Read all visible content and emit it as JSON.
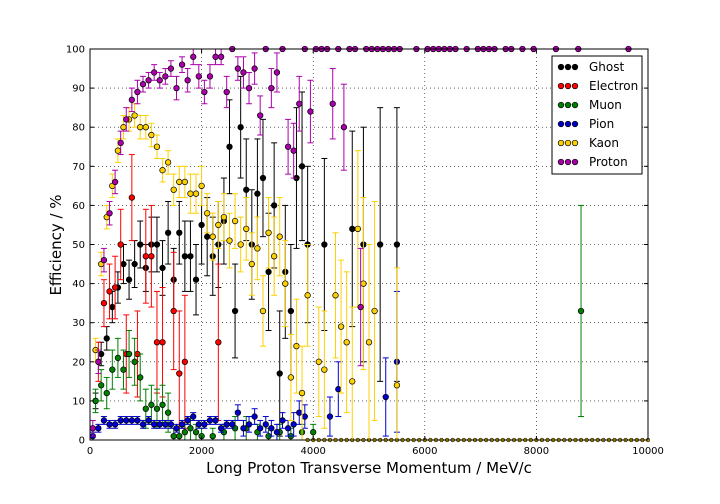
{
  "chart_data": {
    "type": "scatter",
    "title": "",
    "xlabel": "Long Proton Transverse Momentum / MeV/c",
    "ylabel": "Efficiency / %",
    "xlim": [
      0,
      10000
    ],
    "ylim": [
      0,
      100
    ],
    "xticks": [
      0,
      2000,
      4000,
      6000,
      8000,
      10000
    ],
    "yticks": [
      0,
      10,
      20,
      30,
      40,
      50,
      60,
      70,
      80,
      90,
      100
    ],
    "grid": true,
    "legend_position": "top-right",
    "series": [
      {
        "name": "Ghost",
        "color": "#000000",
        "points": [
          [
            100,
            10
          ],
          [
            200,
            22
          ],
          [
            300,
            26
          ],
          [
            400,
            34
          ],
          [
            500,
            39
          ],
          [
            600,
            45
          ],
          [
            700,
            41
          ],
          [
            800,
            45
          ],
          [
            900,
            50
          ],
          [
            1000,
            44
          ],
          [
            1100,
            50
          ],
          [
            1200,
            50
          ],
          [
            1300,
            44
          ],
          [
            1400,
            53
          ],
          [
            1500,
            41
          ],
          [
            1600,
            53
          ],
          [
            1700,
            47
          ],
          [
            1800,
            47
          ],
          [
            1900,
            41
          ],
          [
            2000,
            55
          ],
          [
            2100,
            52
          ],
          [
            2200,
            47
          ],
          [
            2300,
            50
          ],
          [
            2400,
            56
          ],
          [
            2500,
            75
          ],
          [
            2600,
            33
          ],
          [
            2700,
            80
          ],
          [
            2800,
            64
          ],
          [
            2900,
            50
          ],
          [
            3000,
            63
          ],
          [
            3100,
            67
          ],
          [
            3200,
            43
          ],
          [
            3300,
            60
          ],
          [
            3400,
            17
          ],
          [
            3500,
            43
          ],
          [
            3600,
            33
          ],
          [
            3700,
            67
          ],
          [
            3800,
            70
          ],
          [
            3900,
            50
          ],
          [
            4200,
            50
          ],
          [
            4700,
            54
          ],
          [
            4900,
            50
          ],
          [
            5200,
            50
          ],
          [
            5500,
            50
          ]
        ],
        "errors": [
          2,
          3,
          3,
          4,
          4,
          5,
          5,
          6,
          6,
          6,
          7,
          7,
          7,
          8,
          8,
          8,
          9,
          9,
          9,
          10,
          10,
          10,
          11,
          11,
          12,
          12,
          13,
          13,
          14,
          14,
          15,
          15,
          16,
          16,
          17,
          17,
          18,
          19,
          20,
          22,
          25,
          30,
          35,
          35
        ]
      },
      {
        "name": "Electron",
        "color": "#ff0000",
        "points": [
          [
            150,
            20
          ],
          [
            250,
            35
          ],
          [
            350,
            38
          ],
          [
            450,
            39
          ],
          [
            550,
            50
          ],
          [
            650,
            22
          ],
          [
            750,
            62
          ],
          [
            850,
            22
          ],
          [
            1000,
            47
          ],
          [
            1100,
            47
          ],
          [
            1200,
            25
          ],
          [
            1300,
            25
          ],
          [
            1500,
            33
          ],
          [
            1600,
            17
          ],
          [
            1700,
            20
          ],
          [
            2300,
            25
          ]
        ],
        "errors": [
          5,
          6,
          7,
          8,
          9,
          10,
          11,
          11,
          12,
          13,
          13,
          14,
          15,
          16,
          17,
          20
        ]
      },
      {
        "name": "Muon",
        "color": "#008000",
        "points": [
          [
            100,
            10
          ],
          [
            200,
            14
          ],
          [
            300,
            12
          ],
          [
            400,
            18
          ],
          [
            500,
            21
          ],
          [
            600,
            18
          ],
          [
            700,
            22
          ],
          [
            800,
            20
          ],
          [
            900,
            16
          ],
          [
            1000,
            8
          ],
          [
            1100,
            9
          ],
          [
            1200,
            8
          ],
          [
            1300,
            9
          ],
          [
            1400,
            7
          ],
          [
            1500,
            1
          ],
          [
            1600,
            1
          ],
          [
            1700,
            2
          ],
          [
            1800,
            3
          ],
          [
            1900,
            2
          ],
          [
            2000,
            1
          ],
          [
            2200,
            1
          ],
          [
            2400,
            2
          ],
          [
            2600,
            3
          ],
          [
            2800,
            3
          ],
          [
            3000,
            2
          ],
          [
            3200,
            1
          ],
          [
            3400,
            2
          ],
          [
            3600,
            1
          ],
          [
            3800,
            2
          ],
          [
            4000,
            2
          ],
          [
            8800,
            33
          ]
        ],
        "errors": [
          3,
          4,
          4,
          5,
          5,
          5,
          6,
          6,
          6,
          5,
          5,
          5,
          5,
          5,
          2,
          2,
          2,
          3,
          2,
          2,
          2,
          2,
          3,
          3,
          2,
          2,
          2,
          2,
          2,
          2,
          27
        ]
      },
      {
        "name": "Pion",
        "color": "#0000cc",
        "points": [
          [
            50,
            1
          ],
          [
            150,
            3
          ],
          [
            250,
            5
          ],
          [
            350,
            4
          ],
          [
            450,
            4
          ],
          [
            550,
            5
          ],
          [
            650,
            5
          ],
          [
            750,
            5
          ],
          [
            850,
            5
          ],
          [
            950,
            4
          ],
          [
            1050,
            5
          ],
          [
            1150,
            4
          ],
          [
            1250,
            4
          ],
          [
            1350,
            4
          ],
          [
            1450,
            4
          ],
          [
            1550,
            3
          ],
          [
            1650,
            4
          ],
          [
            1750,
            5
          ],
          [
            1850,
            6
          ],
          [
            1950,
            4
          ],
          [
            2050,
            4
          ],
          [
            2150,
            5
          ],
          [
            2250,
            5
          ],
          [
            2350,
            3
          ],
          [
            2450,
            4
          ],
          [
            2550,
            4
          ],
          [
            2650,
            7
          ],
          [
            2750,
            3
          ],
          [
            2850,
            4
          ],
          [
            2950,
            6
          ],
          [
            3050,
            3
          ],
          [
            3150,
            4
          ],
          [
            3250,
            3
          ],
          [
            3350,
            2
          ],
          [
            3450,
            5
          ],
          [
            3550,
            3
          ],
          [
            3650,
            4
          ],
          [
            3750,
            7
          ],
          [
            3850,
            6
          ],
          [
            4300,
            6
          ],
          [
            4450,
            13
          ],
          [
            5300,
            11
          ],
          [
            5500,
            20
          ]
        ],
        "errors": [
          1,
          1,
          1,
          1,
          1,
          1,
          1,
          1,
          1,
          1,
          1,
          1,
          1,
          1,
          1,
          1,
          1,
          1,
          1,
          1,
          1,
          1,
          1,
          1,
          1,
          1,
          2,
          2,
          2,
          2,
          2,
          2,
          2,
          2,
          2,
          2,
          3,
          3,
          3,
          5,
          7,
          10,
          18
        ]
      },
      {
        "name": "Kaon",
        "color": "#ffd000",
        "points": [
          [
            100,
            23
          ],
          [
            200,
            45
          ],
          [
            300,
            57
          ],
          [
            400,
            65
          ],
          [
            500,
            74
          ],
          [
            600,
            80
          ],
          [
            700,
            82
          ],
          [
            800,
            83
          ],
          [
            900,
            80
          ],
          [
            1000,
            80
          ],
          [
            1100,
            78
          ],
          [
            1200,
            75
          ],
          [
            1300,
            69
          ],
          [
            1400,
            71
          ],
          [
            1500,
            64
          ],
          [
            1600,
            66
          ],
          [
            1700,
            66
          ],
          [
            1800,
            63
          ],
          [
            1900,
            63
          ],
          [
            2000,
            65
          ],
          [
            2100,
            58
          ],
          [
            2200,
            52
          ],
          [
            2300,
            55
          ],
          [
            2400,
            57
          ],
          [
            2500,
            51
          ],
          [
            2600,
            56
          ],
          [
            2700,
            50
          ],
          [
            2800,
            54
          ],
          [
            2900,
            45
          ],
          [
            3000,
            49
          ],
          [
            3100,
            33
          ],
          [
            3200,
            53
          ],
          [
            3300,
            47
          ],
          [
            3400,
            52
          ],
          [
            3500,
            40
          ],
          [
            3600,
            16
          ],
          [
            3700,
            24
          ],
          [
            3800,
            12
          ],
          [
            3900,
            37
          ],
          [
            4100,
            20
          ],
          [
            4200,
            18
          ],
          [
            4400,
            37
          ],
          [
            4500,
            29
          ],
          [
            4600,
            25
          ],
          [
            4700,
            15
          ],
          [
            4800,
            54
          ],
          [
            4900,
            40
          ],
          [
            5000,
            25
          ],
          [
            5100,
            33
          ],
          [
            5500,
            14
          ]
        ],
        "errors": [
          3,
          3,
          3,
          3,
          3,
          3,
          3,
          3,
          3,
          3,
          3,
          3,
          3,
          3,
          4,
          4,
          4,
          5,
          5,
          5,
          5,
          6,
          6,
          6,
          7,
          7,
          7,
          8,
          8,
          8,
          9,
          9,
          10,
          10,
          11,
          11,
          12,
          12,
          13,
          14,
          15,
          16,
          17,
          18,
          19,
          20,
          22,
          25,
          28,
          30
        ]
      },
      {
        "name": "Proton",
        "color": "#aa00aa",
        "points": [
          [
            50,
            3
          ],
          [
            150,
            20
          ],
          [
            250,
            46
          ],
          [
            350,
            58
          ],
          [
            450,
            66
          ],
          [
            550,
            76
          ],
          [
            650,
            82
          ],
          [
            750,
            87
          ],
          [
            850,
            89
          ],
          [
            950,
            91
          ],
          [
            1050,
            92
          ],
          [
            1150,
            94
          ],
          [
            1250,
            92
          ],
          [
            1350,
            93
          ],
          [
            1450,
            95
          ],
          [
            1550,
            90
          ],
          [
            1650,
            96
          ],
          [
            1750,
            92
          ],
          [
            1850,
            98
          ],
          [
            1950,
            93
          ],
          [
            2050,
            89
          ],
          [
            2150,
            93
          ],
          [
            2250,
            98
          ],
          [
            2350,
            98
          ],
          [
            2450,
            89
          ],
          [
            2550,
            100
          ],
          [
            2650,
            95
          ],
          [
            2750,
            94
          ],
          [
            2850,
            90
          ],
          [
            2950,
            95
          ],
          [
            3050,
            83
          ],
          [
            3150,
            100
          ],
          [
            3250,
            90
          ],
          [
            3350,
            94
          ],
          [
            3450,
            100
          ],
          [
            3550,
            75
          ],
          [
            3650,
            74
          ],
          [
            3750,
            86
          ],
          [
            3850,
            100
          ],
          [
            3950,
            84
          ],
          [
            4050,
            100
          ],
          [
            4150,
            100
          ],
          [
            4250,
            100
          ],
          [
            4350,
            86
          ],
          [
            4450,
            100
          ],
          [
            4550,
            80
          ],
          [
            4650,
            100
          ],
          [
            4750,
            100
          ],
          [
            4850,
            34
          ],
          [
            4950,
            100
          ],
          [
            5050,
            100
          ],
          [
            5150,
            100
          ],
          [
            5250,
            100
          ],
          [
            5350,
            100
          ],
          [
            5450,
            100
          ],
          [
            5550,
            100
          ],
          [
            5850,
            100
          ],
          [
            6050,
            100
          ],
          [
            6150,
            100
          ],
          [
            6250,
            100
          ],
          [
            6350,
            100
          ],
          [
            6450,
            100
          ],
          [
            6550,
            100
          ],
          [
            6750,
            100
          ],
          [
            6950,
            100
          ],
          [
            7050,
            100
          ],
          [
            7150,
            100
          ],
          [
            7250,
            100
          ],
          [
            7450,
            100
          ],
          [
            7550,
            100
          ],
          [
            7750,
            100
          ],
          [
            7950,
            100
          ],
          [
            8350,
            100
          ],
          [
            8750,
            100
          ],
          [
            9650,
            100
          ]
        ],
        "errors": [
          2,
          3,
          3,
          3,
          3,
          3,
          3,
          3,
          3,
          2,
          2,
          2,
          2,
          2,
          2,
          3,
          2,
          3,
          2,
          3,
          3,
          3,
          2,
          2,
          4,
          0,
          3,
          4,
          4,
          4,
          5,
          0,
          5,
          5,
          0,
          7,
          7,
          7,
          0,
          8,
          0,
          0,
          0,
          9,
          0,
          11,
          0,
          0,
          15,
          0,
          0,
          0,
          0,
          0,
          0,
          0,
          0,
          0,
          0,
          0,
          0,
          0,
          0,
          0,
          0,
          0,
          0,
          0,
          0,
          0,
          0,
          0,
          0,
          0,
          0
        ]
      }
    ],
    "zero_efficiency_range": [
      3900,
      10000
    ]
  }
}
